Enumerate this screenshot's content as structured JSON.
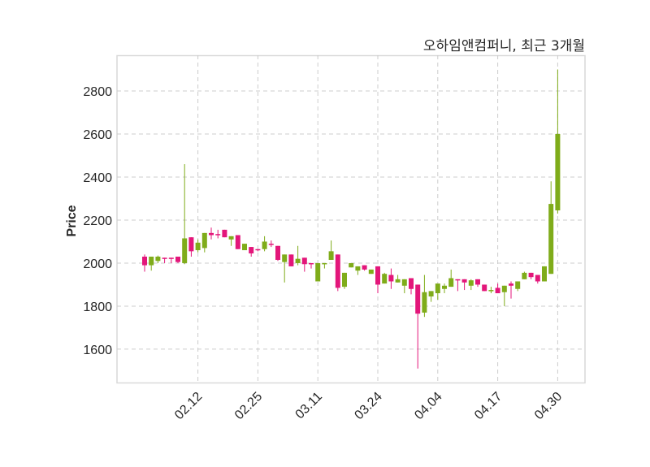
{
  "chart_data": {
    "type": "candlestick",
    "title": "오하임앤컴퍼니, 최근 3개월",
    "xlabel": "",
    "ylabel": "Price",
    "ylim": [
      1445,
      2966
    ],
    "yticks": [
      1600,
      1800,
      2000,
      2200,
      2400,
      2600,
      2800
    ],
    "xtick_labels": [
      {
        "index": 8,
        "label": "02.12"
      },
      {
        "index": 17,
        "label": "02.25"
      },
      {
        "index": 26,
        "label": "03.11"
      },
      {
        "index": 35,
        "label": "03.24"
      },
      {
        "index": 44,
        "label": "04.04"
      },
      {
        "index": 53,
        "label": "04.17"
      },
      {
        "index": 62,
        "label": "04.30"
      }
    ],
    "grid": true,
    "colors": {
      "up": "#7fac1a",
      "down": "#e3167a",
      "grid": "#cccccc",
      "frame": "#d9d9d9"
    },
    "ohlc": [
      [
        2030,
        2040,
        1960,
        1990
      ],
      [
        1990,
        2030,
        1965,
        2030
      ],
      [
        2010,
        2035,
        2000,
        2030
      ],
      [
        2025,
        2025,
        2000,
        2020
      ],
      [
        2025,
        2025,
        2000,
        2020
      ],
      [
        2030,
        2030,
        2000,
        2005
      ],
      [
        2000,
        2460,
        1995,
        2115
      ],
      [
        2120,
        2120,
        2030,
        2055
      ],
      [
        2060,
        2110,
        2050,
        2095
      ],
      [
        2070,
        2140,
        2050,
        2140
      ],
      [
        2140,
        2165,
        2110,
        2130
      ],
      [
        2135,
        2155,
        2115,
        2130
      ],
      [
        2155,
        2155,
        2120,
        2120
      ],
      [
        2110,
        2125,
        2080,
        2125
      ],
      [
        2130,
        2130,
        2065,
        2065
      ],
      [
        2060,
        2090,
        2060,
        2090
      ],
      [
        2075,
        2075,
        2030,
        2045
      ],
      [
        2065,
        2065,
        2055,
        2060
      ],
      [
        2065,
        2125,
        2055,
        2100
      ],
      [
        2090,
        2105,
        2075,
        2085
      ],
      [
        2080,
        2080,
        2010,
        2015
      ],
      [
        2005,
        2040,
        1910,
        2040
      ],
      [
        2040,
        2040,
        1985,
        1985
      ],
      [
        2000,
        2080,
        1990,
        2020
      ],
      [
        2025,
        2025,
        1960,
        1995
      ],
      [
        2000,
        2000,
        1975,
        1995
      ],
      [
        1915,
        2000,
        1915,
        2000
      ],
      [
        1995,
        2000,
        1975,
        2000
      ],
      [
        2015,
        2105,
        2015,
        2055
      ],
      [
        2040,
        2040,
        1870,
        1885
      ],
      [
        1890,
        1955,
        1880,
        1955
      ],
      [
        1980,
        2000,
        1980,
        2000
      ],
      [
        1965,
        1985,
        1945,
        1985
      ],
      [
        1990,
        1990,
        1965,
        1970
      ],
      [
        1950,
        1970,
        1950,
        1970
      ],
      [
        1985,
        1985,
        1860,
        1900
      ],
      [
        1905,
        1955,
        1905,
        1950
      ],
      [
        1945,
        1975,
        1880,
        1915
      ],
      [
        1910,
        1945,
        1910,
        1925
      ],
      [
        1895,
        1925,
        1860,
        1925
      ],
      [
        1930,
        1930,
        1855,
        1880
      ],
      [
        1900,
        1900,
        1510,
        1765
      ],
      [
        1770,
        1945,
        1750,
        1865
      ],
      [
        1845,
        1870,
        1820,
        1870
      ],
      [
        1860,
        1905,
        1830,
        1905
      ],
      [
        1880,
        1905,
        1860,
        1895
      ],
      [
        1890,
        1970,
        1890,
        1930
      ],
      [
        1925,
        1925,
        1870,
        1920
      ],
      [
        1925,
        1925,
        1875,
        1910
      ],
      [
        1895,
        1925,
        1875,
        1920
      ],
      [
        1925,
        1925,
        1890,
        1900
      ],
      [
        1900,
        1900,
        1870,
        1870
      ],
      [
        1870,
        1890,
        1860,
        1875
      ],
      [
        1885,
        1905,
        1860,
        1860
      ],
      [
        1865,
        1895,
        1800,
        1895
      ],
      [
        1905,
        1915,
        1835,
        1895
      ],
      [
        1880,
        1915,
        1870,
        1915
      ],
      [
        1925,
        1960,
        1925,
        1955
      ],
      [
        1955,
        1955,
        1925,
        1935
      ],
      [
        1945,
        1945,
        1905,
        1915
      ],
      [
        1915,
        1985,
        1915,
        1985
      ],
      [
        1950,
        2380,
        1950,
        2275
      ],
      [
        2245,
        2900,
        2230,
        2600
      ]
    ]
  }
}
